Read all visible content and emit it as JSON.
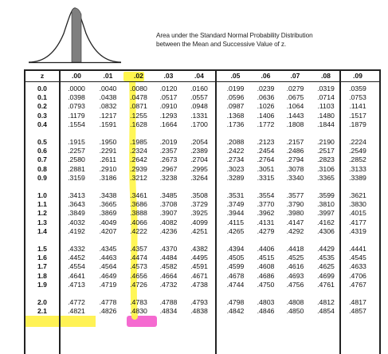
{
  "caption": {
    "line1": "Area under the Standard Normal Probability Distribution",
    "line2": "between the Mean and Successive Value of z."
  },
  "table": {
    "headers": [
      "z",
      ".00",
      ".01",
      ".02",
      ".03",
      ".04",
      ".05",
      ".06",
      ".07",
      ".08",
      ".09"
    ],
    "rows": [
      {
        "z": "0.0",
        "v": [
          ".0000",
          ".0040",
          ".0080",
          ".0120",
          ".0160",
          ".0199",
          ".0239",
          ".0279",
          ".0319",
          ".0359"
        ]
      },
      {
        "z": "0.1",
        "v": [
          ".0398",
          ".0438",
          ".0478",
          ".0517",
          ".0557",
          ".0596",
          ".0636",
          ".0675",
          ".0714",
          ".0753"
        ]
      },
      {
        "z": "0.2",
        "v": [
          ".0793",
          ".0832",
          ".0871",
          ".0910",
          ".0948",
          ".0987",
          ".1026",
          ".1064",
          ".1103",
          ".1141"
        ]
      },
      {
        "z": "0.3",
        "v": [
          ".1179",
          ".1217",
          ".1255",
          ".1293",
          ".1331",
          ".1368",
          ".1406",
          ".1443",
          ".1480",
          ".1517"
        ]
      },
      {
        "z": "0.4",
        "v": [
          ".1554",
          ".1591",
          ".1628",
          ".1664",
          ".1700",
          ".1736",
          ".1772",
          ".1808",
          ".1844",
          ".1879"
        ]
      },
      {
        "z": "0.5",
        "v": [
          ".1915",
          ".1950",
          ".1985",
          ".2019",
          ".2054",
          ".2088",
          ".2123",
          ".2157",
          ".2190",
          ".2224"
        ]
      },
      {
        "z": "0.6",
        "v": [
          ".2257",
          ".2291",
          ".2324",
          ".2357",
          ".2389",
          ".2422",
          ".2454",
          ".2486",
          ".2517",
          ".2549"
        ]
      },
      {
        "z": "0.7",
        "v": [
          ".2580",
          ".2611",
          ".2642",
          ".2673",
          ".2704",
          ".2734",
          ".2764",
          ".2794",
          ".2823",
          ".2852"
        ]
      },
      {
        "z": "0.8",
        "v": [
          ".2881",
          ".2910",
          ".2939",
          ".2967",
          ".2995",
          ".3023",
          ".3051",
          ".3078",
          ".3106",
          ".3133"
        ]
      },
      {
        "z": "0.9",
        "v": [
          ".3159",
          ".3186",
          ".3212",
          ".3238",
          ".3264",
          ".3289",
          ".3315",
          ".3340",
          ".3365",
          ".3389"
        ]
      },
      {
        "z": "1.0",
        "v": [
          ".3413",
          ".3438",
          ".3461",
          ".3485",
          ".3508",
          ".3531",
          ".3554",
          ".3577",
          ".3599",
          ".3621"
        ]
      },
      {
        "z": "1.1",
        "v": [
          ".3643",
          ".3665",
          ".3686",
          ".3708",
          ".3729",
          ".3749",
          ".3770",
          ".3790",
          ".3810",
          ".3830"
        ]
      },
      {
        "z": "1.2",
        "v": [
          ".3849",
          ".3869",
          ".3888",
          ".3907",
          ".3925",
          ".3944",
          ".3962",
          ".3980",
          ".3997",
          ".4015"
        ]
      },
      {
        "z": "1.3",
        "v": [
          ".4032",
          ".4049",
          ".4066",
          ".4082",
          ".4099",
          ".4115",
          ".4131",
          ".4147",
          ".4162",
          ".4177"
        ]
      },
      {
        "z": "1.4",
        "v": [
          ".4192",
          ".4207",
          ".4222",
          ".4236",
          ".4251",
          ".4265",
          ".4279",
          ".4292",
          ".4306",
          ".4319"
        ]
      },
      {
        "z": "1.5",
        "v": [
          ".4332",
          ".4345",
          ".4357",
          ".4370",
          ".4382",
          ".4394",
          ".4406",
          ".4418",
          ".4429",
          ".4441"
        ]
      },
      {
        "z": "1.6",
        "v": [
          ".4452",
          ".4463",
          ".4474",
          ".4484",
          ".4495",
          ".4505",
          ".4515",
          ".4525",
          ".4535",
          ".4545"
        ]
      },
      {
        "z": "1.7",
        "v": [
          ".4554",
          ".4564",
          ".4573",
          ".4582",
          ".4591",
          ".4599",
          ".4608",
          ".4616",
          ".4625",
          ".4633"
        ]
      },
      {
        "z": "1.8",
        "v": [
          ".4641",
          ".4649",
          ".4656",
          ".4664",
          ".4671",
          ".4678",
          ".4686",
          ".4693",
          ".4699",
          ".4706"
        ]
      },
      {
        "z": "1.9",
        "v": [
          ".4713",
          ".4719",
          ".4726",
          ".4732",
          ".4738",
          ".4744",
          ".4750",
          ".4756",
          ".4761",
          ".4767"
        ]
      },
      {
        "z": "2.0",
        "v": [
          ".4772",
          ".4778",
          ".4783",
          ".4788",
          ".4793",
          ".4798",
          ".4803",
          ".4808",
          ".4812",
          ".4817"
        ]
      },
      {
        "z": "2.1",
        "v": [
          ".4821",
          ".4826",
          ".4830",
          ".4834",
          ".4838",
          ".4842",
          ".4846",
          ".4850",
          ".4854",
          ".4857"
        ]
      }
    ]
  },
  "annotations": {
    "highlight_column": ".02",
    "highlight_row": "1.9",
    "highlight_cell": ".4726",
    "column_color": "#fff64d",
    "cell_color": "#f56ad0"
  }
}
